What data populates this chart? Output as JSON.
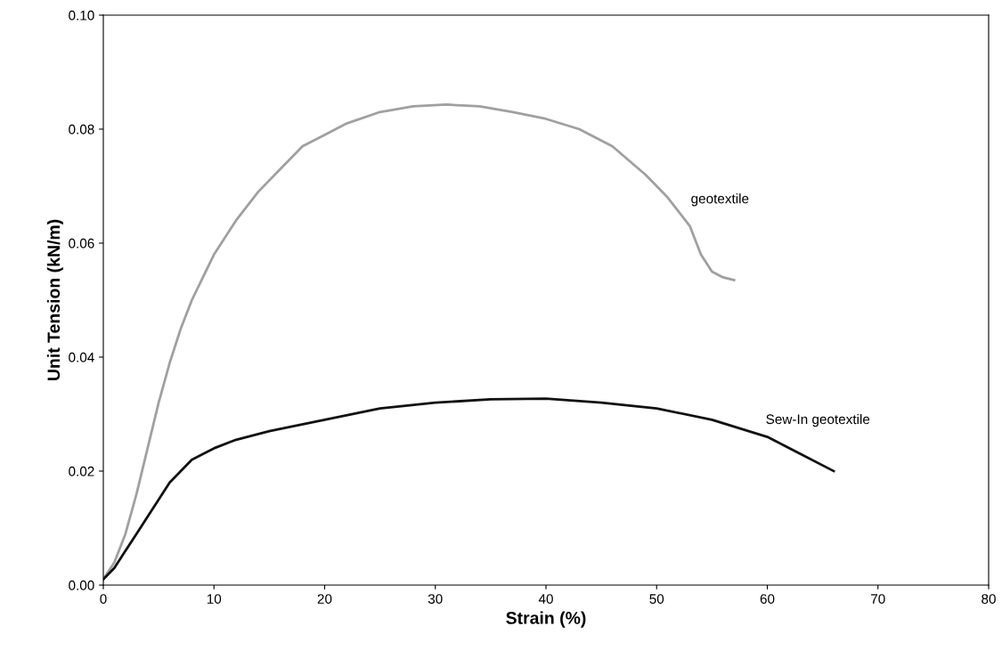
{
  "chart_data": {
    "type": "line",
    "xlabel": "Strain (%)",
    "ylabel": "Unit Tension (kN/m)",
    "xlim": [
      0,
      80
    ],
    "xticks": [
      0,
      10,
      20,
      30,
      40,
      50,
      60,
      70,
      80
    ],
    "ylim": [
      0,
      0.1
    ],
    "yticks": [
      {
        "value": 0,
        "label": "0.00"
      },
      {
        "value": 0.02,
        "label": "0.02"
      },
      {
        "value": 0.04,
        "label": "0.04"
      },
      {
        "value": 0.06,
        "label": "0.06"
      },
      {
        "value": 0.08,
        "label": "0.08"
      },
      {
        "value": 0.1,
        "label": "0.10"
      }
    ],
    "grid": false,
    "legend": false,
    "marker": "none",
    "line_style": "solid",
    "series": [
      {
        "name": "geotextile",
        "color": "#a0a0a0",
        "x": [
          0,
          1,
          2,
          3,
          4,
          5,
          6,
          7,
          8,
          9,
          10,
          12,
          14,
          16,
          18,
          20,
          22,
          25,
          28,
          31,
          34,
          37,
          40,
          43,
          46,
          49,
          51,
          53,
          54,
          55,
          56,
          57
        ],
        "values": [
          0.001,
          0.004,
          0.009,
          0.016,
          0.024,
          0.032,
          0.039,
          0.045,
          0.05,
          0.054,
          0.058,
          0.064,
          0.069,
          0.073,
          0.077,
          0.079,
          0.081,
          0.083,
          0.084,
          0.0843,
          0.084,
          0.083,
          0.0818,
          0.08,
          0.077,
          0.072,
          0.068,
          0.063,
          0.058,
          0.055,
          0.054,
          0.0535
        ]
      },
      {
        "name": "Sew-In geotextile",
        "color": "#111111",
        "x": [
          0,
          1,
          2,
          3,
          4,
          5,
          6,
          7,
          8,
          10,
          12,
          15,
          20,
          25,
          30,
          35,
          40,
          45,
          50,
          55,
          60,
          63,
          66
        ],
        "values": [
          0.001,
          0.003,
          0.006,
          0.009,
          0.012,
          0.015,
          0.018,
          0.02,
          0.022,
          0.024,
          0.0255,
          0.027,
          0.029,
          0.031,
          0.032,
          0.0326,
          0.0327,
          0.032,
          0.031,
          0.029,
          0.026,
          0.023,
          0.02
        ]
      }
    ]
  }
}
